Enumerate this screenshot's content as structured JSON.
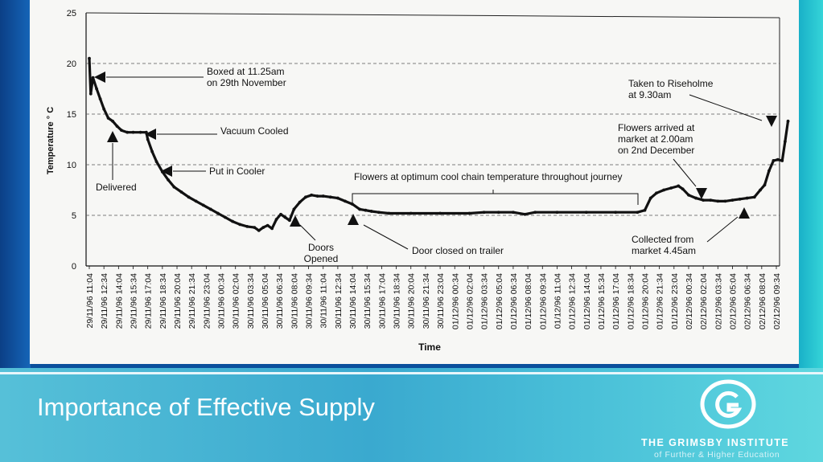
{
  "slide": {
    "title": "Importance of Effective Supply",
    "org_name": "THE GRIMSBY INSTITUTE",
    "org_subtitle": "of Further & Higher Education",
    "colors": {
      "footer": "#49b7d6",
      "left_band": "#0b3f86",
      "right_band": "#2cc4d2",
      "title_text": "#ffffff"
    }
  },
  "chart_data": {
    "type": "line",
    "xlabel": "Time",
    "ylabel": "Temperature ° C",
    "ylim": [
      0,
      25
    ],
    "yticks": [
      0,
      5,
      10,
      15,
      20,
      25
    ],
    "grid": "dashed horizontal",
    "categories": [
      "29/11/96 11:04",
      "29/11/96 12:34",
      "29/11/96 14:04",
      "29/11/96 15:34",
      "29/11/96 17:04",
      "29/11/96 18:34",
      "29/11/96 20:04",
      "29/11/96 21:34",
      "29/11/96 23:04",
      "30/11/96 00:34",
      "30/11/96 02:04",
      "30/11/96 03:34",
      "30/11/96 05:04",
      "30/11/96 06:34",
      "30/11/96 08:04",
      "30/11/96 09:34",
      "30/11/96 11:04",
      "30/11/96 12:34",
      "30/11/96 14:04",
      "30/11/96 15:34",
      "30/11/96 17:04",
      "30/11/96 18:34",
      "30/11/96 20:04",
      "30/11/96 21:34",
      "30/11/96 23:04",
      "01/12/96 00:34",
      "01/12/96 02:04",
      "01/12/96 03:34",
      "01/12/96 05:04",
      "01/12/96 06:34",
      "01/12/96 08:04",
      "01/12/96 09:34",
      "01/12/96 11:04",
      "01/12/96 12:34",
      "01/12/96 14:04",
      "01/12/96 15:34",
      "01/12/96 17:04",
      "01/12/96 18:34",
      "01/12/96 20:04",
      "01/12/96 21:34",
      "01/12/96 23:04",
      "02/12/96 00:34",
      "02/12/96 02:04",
      "02/12/96 03:34",
      "02/12/96 05:04",
      "02/12/96 06:34",
      "02/12/96 08:04",
      "02/12/96 09:34"
    ],
    "series": [
      {
        "values": [
          {
            "x": 0.0,
            "y": 20.5
          },
          {
            "x": 0.1,
            "y": 17.0
          },
          {
            "x": 0.25,
            "y": 18.6
          },
          {
            "x": 0.5,
            "y": 17.5
          },
          {
            "x": 0.75,
            "y": 16.5
          },
          {
            "x": 1.0,
            "y": 15.5
          },
          {
            "x": 1.3,
            "y": 14.6
          },
          {
            "x": 1.6,
            "y": 14.3
          },
          {
            "x": 1.9,
            "y": 13.8
          },
          {
            "x": 2.2,
            "y": 13.4
          },
          {
            "x": 2.6,
            "y": 13.2
          },
          {
            "x": 3.0,
            "y": 13.2
          },
          {
            "x": 3.5,
            "y": 13.2
          },
          {
            "x": 3.9,
            "y": 13.2
          },
          {
            "x": 4.0,
            "y": 12.5
          },
          {
            "x": 4.3,
            "y": 11.3
          },
          {
            "x": 4.6,
            "y": 10.3
          },
          {
            "x": 5.0,
            "y": 9.3
          },
          {
            "x": 5.4,
            "y": 8.5
          },
          {
            "x": 5.8,
            "y": 7.8
          },
          {
            "x": 6.3,
            "y": 7.3
          },
          {
            "x": 6.8,
            "y": 6.8
          },
          {
            "x": 7.3,
            "y": 6.4
          },
          {
            "x": 7.8,
            "y": 6.0
          },
          {
            "x": 8.3,
            "y": 5.6
          },
          {
            "x": 8.8,
            "y": 5.2
          },
          {
            "x": 9.3,
            "y": 4.8
          },
          {
            "x": 9.8,
            "y": 4.4
          },
          {
            "x": 10.3,
            "y": 4.1
          },
          {
            "x": 10.8,
            "y": 3.9
          },
          {
            "x": 11.3,
            "y": 3.8
          },
          {
            "x": 11.6,
            "y": 3.5
          },
          {
            "x": 11.9,
            "y": 3.8
          },
          {
            "x": 12.2,
            "y": 4.0
          },
          {
            "x": 12.5,
            "y": 3.7
          },
          {
            "x": 12.8,
            "y": 4.6
          },
          {
            "x": 13.1,
            "y": 5.1
          },
          {
            "x": 13.4,
            "y": 4.8
          },
          {
            "x": 13.7,
            "y": 4.5
          },
          {
            "x": 14.0,
            "y": 5.6
          },
          {
            "x": 14.4,
            "y": 6.3
          },
          {
            "x": 14.8,
            "y": 6.8
          },
          {
            "x": 15.2,
            "y": 7.0
          },
          {
            "x": 15.6,
            "y": 6.9
          },
          {
            "x": 16.0,
            "y": 6.9
          },
          {
            "x": 16.5,
            "y": 6.8
          },
          {
            "x": 17.0,
            "y": 6.7
          },
          {
            "x": 17.5,
            "y": 6.4
          },
          {
            "x": 18.0,
            "y": 6.1
          },
          {
            "x": 18.5,
            "y": 5.6
          },
          {
            "x": 18.9,
            "y": 5.5
          },
          {
            "x": 19.3,
            "y": 5.4
          },
          {
            "x": 19.8,
            "y": 5.3
          },
          {
            "x": 20.5,
            "y": 5.2
          },
          {
            "x": 22.0,
            "y": 5.2
          },
          {
            "x": 24.0,
            "y": 5.2
          },
          {
            "x": 26.0,
            "y": 5.2
          },
          {
            "x": 27.0,
            "y": 5.3
          },
          {
            "x": 28.0,
            "y": 5.3
          },
          {
            "x": 29.0,
            "y": 5.3
          },
          {
            "x": 29.8,
            "y": 5.1
          },
          {
            "x": 30.5,
            "y": 5.3
          },
          {
            "x": 32.0,
            "y": 5.3
          },
          {
            "x": 34.0,
            "y": 5.3
          },
          {
            "x": 36.0,
            "y": 5.3
          },
          {
            "x": 37.5,
            "y": 5.3
          },
          {
            "x": 38.0,
            "y": 5.5
          },
          {
            "x": 38.4,
            "y": 6.7
          },
          {
            "x": 38.8,
            "y": 7.2
          },
          {
            "x": 39.3,
            "y": 7.5
          },
          {
            "x": 39.8,
            "y": 7.7
          },
          {
            "x": 40.3,
            "y": 7.9
          },
          {
            "x": 40.6,
            "y": 7.6
          },
          {
            "x": 41.0,
            "y": 7.0
          },
          {
            "x": 41.5,
            "y": 6.7
          },
          {
            "x": 42.0,
            "y": 6.5
          },
          {
            "x": 42.5,
            "y": 6.5
          },
          {
            "x": 43.0,
            "y": 6.4
          },
          {
            "x": 43.5,
            "y": 6.4
          },
          {
            "x": 44.0,
            "y": 6.5
          },
          {
            "x": 44.5,
            "y": 6.6
          },
          {
            "x": 45.0,
            "y": 6.7
          },
          {
            "x": 45.5,
            "y": 6.8
          },
          {
            "x": 45.9,
            "y": 7.5
          },
          {
            "x": 46.2,
            "y": 8.0
          },
          {
            "x": 46.5,
            "y": 9.4
          },
          {
            "x": 46.8,
            "y": 10.4
          },
          {
            "x": 47.1,
            "y": 10.5
          },
          {
            "x": 47.4,
            "y": 10.4
          },
          {
            "x": 47.6,
            "y": 12.3
          },
          {
            "x": 47.8,
            "y": 14.3
          }
        ]
      }
    ],
    "annotations": [
      {
        "text": "Boxed at 11.25am on 29th November",
        "x": 0.3,
        "y": 18.6
      },
      {
        "text": "Vacuum Cooled",
        "x": 3.9,
        "y": 13.2
      },
      {
        "text": "Delivered",
        "x": 1.6,
        "y": 13.2
      },
      {
        "text": "Put in Cooler",
        "x": 4.6,
        "y": 9.8
      },
      {
        "text": "Flowers at optimum cool chain temperature throughout journey",
        "x": 25.0,
        "y": 7.2
      },
      {
        "text": "Doors Opened",
        "x": 14.0,
        "y": 5.6
      },
      {
        "text": "Door closed on trailer",
        "x": 18.6,
        "y": 5.3
      },
      {
        "text": "Taken to Riseholme at 9.30am",
        "x": 47.7,
        "y": 13.8
      },
      {
        "text": "Flowers arrived at market at 2.00am on 2nd December",
        "x": 41.0,
        "y": 6.5
      },
      {
        "text": "Collected from market 4.45am",
        "x": 45.8,
        "y": 6.0
      }
    ]
  }
}
